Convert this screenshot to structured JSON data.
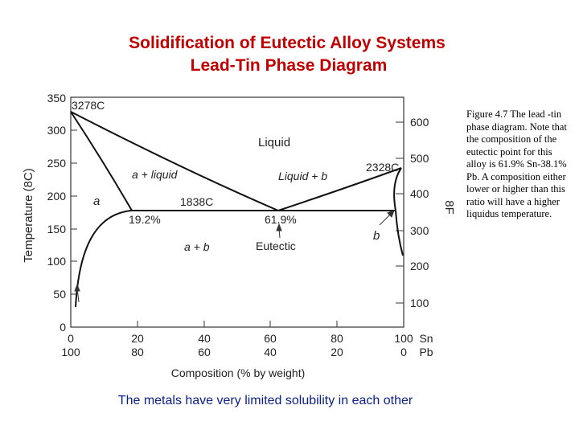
{
  "title": {
    "line1": "Solidification of Eutectic Alloy Systems",
    "line2": "Lead-Tin Phase Diagram"
  },
  "caption": "Figure 4.7 The lead -tin phase diagram. Note that the composition of the eutectic point for this alloy is 61.9% Sn-38.1% Pb. A composition either lower or higher than this ratio will have a higher liquidus temperature.",
  "note": "The metals have very limited solubility in each other",
  "diagram": {
    "left_axis_label": "Temperature (8C)",
    "right_axis_label": "8F",
    "x_axis_label": "Composition (% by weight)",
    "c_ticks": [
      "0",
      "50",
      "100",
      "150",
      "200",
      "250",
      "300",
      "350"
    ],
    "f_ticks": [
      "100",
      "200",
      "300",
      "400",
      "500",
      "600"
    ],
    "sn_ticks": [
      "0",
      "20",
      "40",
      "60",
      "80",
      "100"
    ],
    "pb_ticks": [
      "100",
      "80",
      "60",
      "40",
      "20",
      "0"
    ],
    "sn_label": "Sn",
    "pb_label": "Pb",
    "labels": {
      "pb_melt": "3278C",
      "sn_melt": "2328C",
      "eutectic_temp": "1838C",
      "pb_solubility": "19.2%",
      "eutectic_comp": "61.9%",
      "liquid": "Liquid",
      "alpha_liquid": "a + liquid",
      "liquid_beta": "Liquid + b",
      "alpha": "a",
      "beta": "b",
      "alpha_beta": "a + b",
      "eutectic": "Eutectic"
    }
  }
}
